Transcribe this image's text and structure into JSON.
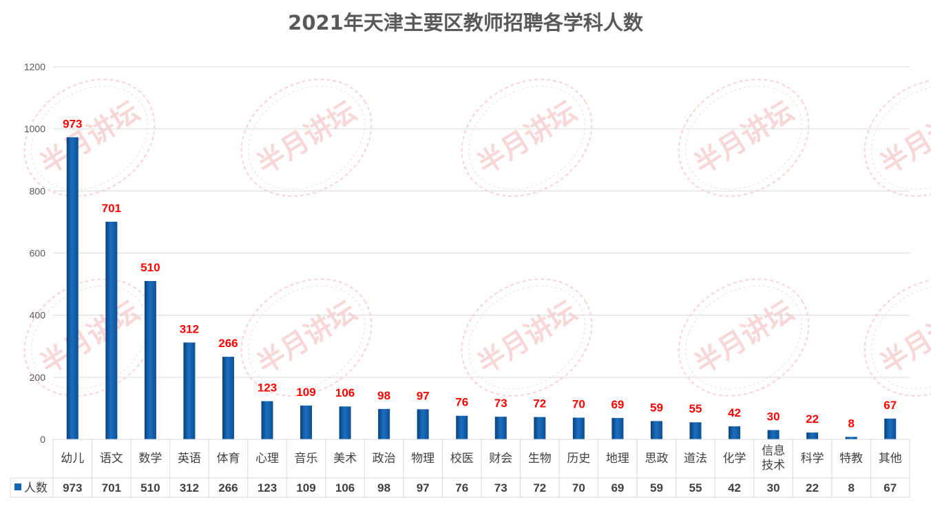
{
  "colors": {
    "bar": "#1465b4",
    "data_label": "#ff0000",
    "grid": "#d9d9d9",
    "title": "#595959",
    "watermark": "#f2b8b8"
  },
  "watermark": "半月讲坛",
  "chart_data": {
    "type": "bar",
    "title": "2021年天津主要区教师招聘各学科人数",
    "xlabel": "",
    "ylabel": "",
    "ylim": [
      0,
      1200
    ],
    "yticks": [
      0,
      200,
      400,
      600,
      800,
      1000,
      1200
    ],
    "grid": true,
    "legend": "data-table-left",
    "categories": [
      "幼儿",
      "语文",
      "数学",
      "英语",
      "体育",
      "心理",
      "音乐",
      "美术",
      "政治",
      "物理",
      "校医",
      "财会",
      "生物",
      "历史",
      "地理",
      "思政",
      "道法",
      "化学",
      "信息技术",
      "科学",
      "特教",
      "其他"
    ],
    "category_lines": [
      [
        "幼儿"
      ],
      [
        "语文"
      ],
      [
        "数学"
      ],
      [
        "英语"
      ],
      [
        "体育"
      ],
      [
        "心理"
      ],
      [
        "音乐"
      ],
      [
        "美术"
      ],
      [
        "政治"
      ],
      [
        "物理"
      ],
      [
        "校医"
      ],
      [
        "财会"
      ],
      [
        "生物"
      ],
      [
        "历史"
      ],
      [
        "地理"
      ],
      [
        "思政"
      ],
      [
        "道法"
      ],
      [
        "化学"
      ],
      [
        "信息",
        "技术"
      ],
      [
        "科学"
      ],
      [
        "特教"
      ],
      [
        "其他"
      ]
    ],
    "series": [
      {
        "name": "人数",
        "values": [
          973,
          701,
          510,
          312,
          266,
          123,
          109,
          106,
          98,
          97,
          76,
          73,
          72,
          70,
          69,
          59,
          55,
          42,
          30,
          22,
          8,
          67
        ]
      }
    ]
  }
}
